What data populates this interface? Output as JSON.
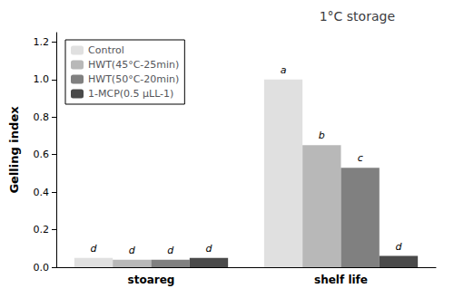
{
  "chart_data": {
    "type": "bar",
    "title": "1°C storage",
    "ylabel": "Gelling index",
    "categories": [
      "stoareg",
      "shelf life"
    ],
    "series": [
      {
        "name": "Control",
        "color": "#e0e0e0",
        "values": [
          0.05,
          1.0
        ],
        "annotations": [
          "d",
          "a"
        ]
      },
      {
        "name": "HWT(45°C-25min)",
        "color": "#b8b8b8",
        "values": [
          0.04,
          0.65
        ],
        "annotations": [
          "d",
          "b"
        ]
      },
      {
        "name": "HWT(50°C-20min)",
        "color": "#808080",
        "values": [
          0.04,
          0.53
        ],
        "annotations": [
          "d",
          "c"
        ]
      },
      {
        "name": "1-MCP(0.5 μLL-1)",
        "color": "#4a4a4a",
        "values": [
          0.05,
          0.06
        ],
        "annotations": [
          "d",
          "d"
        ]
      }
    ],
    "ylim": [
      0,
      1.25
    ],
    "yticks": [
      {
        "value": 0,
        "label": "0.0"
      },
      0.2,
      0.4,
      0.6,
      0.8,
      {
        "value": 1.0,
        "label": "1.0"
      },
      1.2
    ],
    "grid": false,
    "legend": "upper left"
  }
}
